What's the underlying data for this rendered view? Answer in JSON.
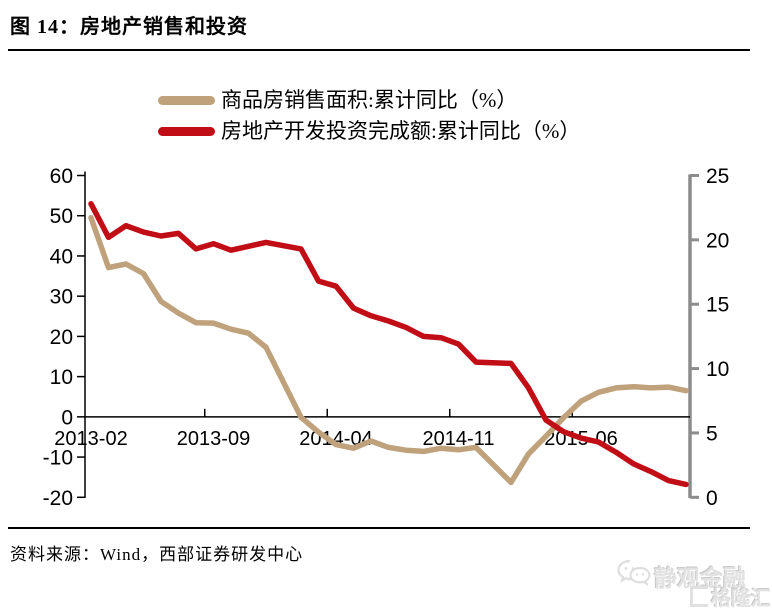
{
  "header": {
    "title": "图 14：房地产销售和投资"
  },
  "footer": {
    "source": "资料来源：Wind，西部证券研发中心"
  },
  "watermark": {
    "brand1": "静观金融",
    "brand2": "格隆汇"
  },
  "chart_data": {
    "type": "line",
    "title": "房地产销售和投资",
    "legend_position": "top",
    "grid": false,
    "x_tick_labels": [
      "2013-02",
      "2013-09",
      "2014-04",
      "2014-11",
      "2015-06"
    ],
    "x_tick_month_indices": [
      0,
      7,
      14,
      21,
      28
    ],
    "x_range_months": 35,
    "left_axis": {
      "min": -20,
      "max": 60,
      "step": 10,
      "ticks": [
        60,
        50,
        40,
        30,
        20,
        10,
        0,
        -10,
        -20
      ],
      "axis_color": "#000000"
    },
    "right_axis": {
      "min": 0,
      "max": 25,
      "step": 5,
      "ticks": [
        25,
        20,
        15,
        10,
        5,
        0
      ],
      "axis_color": "#8C8C8C"
    },
    "series": [
      {
        "name": "商品房销售面积:累计同比（%）",
        "axis": "left",
        "color": "#BFA17C",
        "months": [
          "2013-02",
          "2013-03",
          "2013-04",
          "2013-05",
          "2013-06",
          "2013-07",
          "2013-08",
          "2013-09",
          "2013-10",
          "2013-11",
          "2013-12",
          "2014-02",
          "2014-03",
          "2014-04",
          "2014-05",
          "2014-06",
          "2014-07",
          "2014-08",
          "2014-09",
          "2014-10",
          "2014-11",
          "2014-12",
          "2015-02",
          "2015-03",
          "2015-04",
          "2015-05",
          "2015-06",
          "2015-07",
          "2015-08",
          "2015-09",
          "2015-10",
          "2015-11",
          "2015-12"
        ],
        "month_index": [
          0,
          1,
          2,
          3,
          4,
          5,
          6,
          7,
          8,
          9,
          10,
          12,
          13,
          14,
          15,
          16,
          17,
          18,
          19,
          20,
          21,
          22,
          24,
          25,
          26,
          27,
          28,
          29,
          30,
          31,
          32,
          33,
          34
        ],
        "values": [
          49.5,
          37.1,
          38.0,
          35.6,
          28.7,
          25.8,
          23.4,
          23.3,
          21.8,
          20.8,
          17.3,
          -0.1,
          -3.8,
          -6.9,
          -7.8,
          -6.0,
          -7.6,
          -8.3,
          -8.6,
          -7.8,
          -8.2,
          -7.6,
          -16.3,
          -9.2,
          -4.8,
          -0.2,
          3.9,
          6.1,
          7.2,
          7.5,
          7.2,
          7.4,
          6.5
        ]
      },
      {
        "name": "房地产开发投资完成额:累计同比（%）",
        "axis": "right",
        "color": "#C10D16",
        "months": [
          "2013-02",
          "2013-03",
          "2013-04",
          "2013-05",
          "2013-06",
          "2013-07",
          "2013-08",
          "2013-09",
          "2013-10",
          "2013-11",
          "2013-12",
          "2014-02",
          "2014-03",
          "2014-04",
          "2014-05",
          "2014-06",
          "2014-07",
          "2014-08",
          "2014-09",
          "2014-10",
          "2014-11",
          "2014-12",
          "2015-02",
          "2015-03",
          "2015-04",
          "2015-05",
          "2015-06",
          "2015-07",
          "2015-08",
          "2015-09",
          "2015-10",
          "2015-11",
          "2015-12"
        ],
        "month_index": [
          0,
          1,
          2,
          3,
          4,
          5,
          6,
          7,
          8,
          9,
          10,
          12,
          13,
          14,
          15,
          16,
          17,
          18,
          19,
          20,
          21,
          22,
          24,
          25,
          26,
          27,
          28,
          29,
          30,
          31,
          32,
          33,
          34
        ],
        "values": [
          22.8,
          20.2,
          21.1,
          20.6,
          20.3,
          20.5,
          19.3,
          19.7,
          19.2,
          19.5,
          19.8,
          19.3,
          16.8,
          16.4,
          14.7,
          14.1,
          13.7,
          13.2,
          12.5,
          12.4,
          11.9,
          10.5,
          10.4,
          8.5,
          6.0,
          5.1,
          4.6,
          4.3,
          3.5,
          2.6,
          2.0,
          1.3,
          1.0
        ]
      }
    ]
  }
}
